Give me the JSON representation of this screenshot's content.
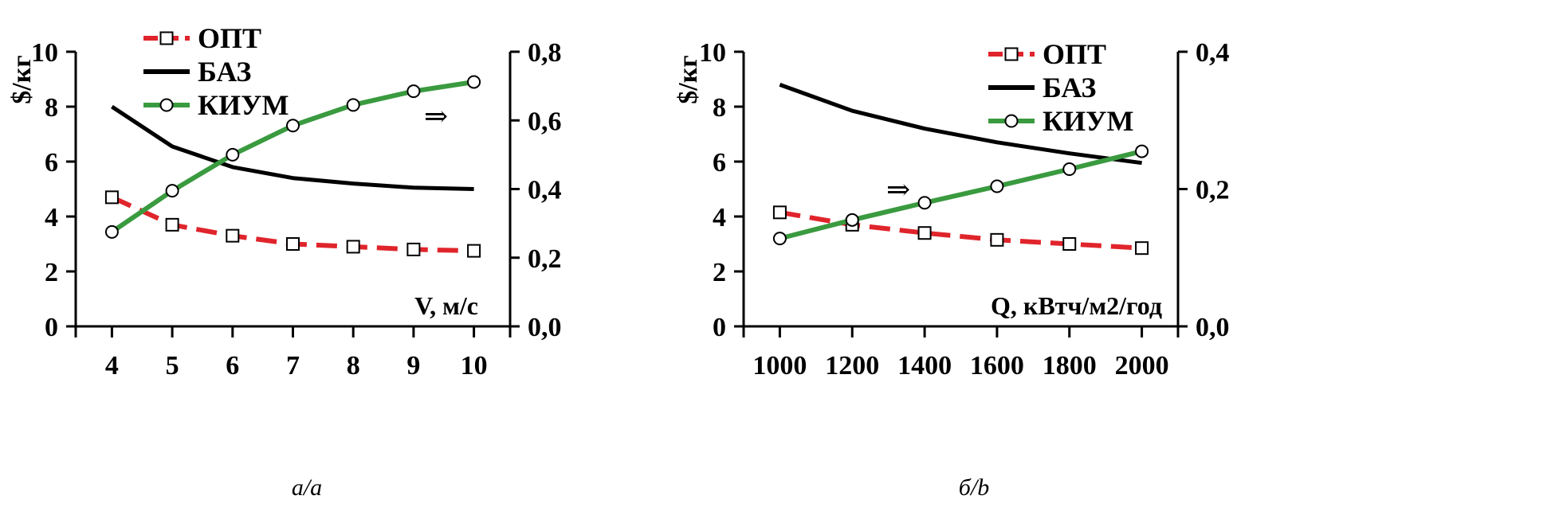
{
  "chart_data": [
    {
      "type": "line",
      "panel_label": "а/a",
      "x_axis": {
        "name": "V, м/с",
        "ticks": [
          "4",
          "5",
          "6",
          "7",
          "8",
          "9",
          "10"
        ],
        "range": [
          3.4,
          10.6
        ]
      },
      "y_left": {
        "label": "$/кг",
        "ticks": [
          "0",
          "2",
          "4",
          "6",
          "8",
          "10"
        ],
        "range": [
          0,
          10
        ]
      },
      "y_right": {
        "ticks": [
          "0,0",
          "0,2",
          "0,4",
          "0,6",
          "0,8"
        ],
        "range": [
          0,
          0.8
        ]
      },
      "x": [
        4,
        5,
        6,
        7,
        8,
        9,
        10
      ],
      "series": [
        {
          "name": "ОПТ",
          "axis": "left",
          "color": "#e0242b",
          "style": "dashed",
          "marker": "square",
          "values": [
            4.7,
            3.7,
            3.3,
            3.0,
            2.9,
            2.8,
            2.75
          ]
        },
        {
          "name": "БАЗ",
          "axis": "left",
          "color": "#000000",
          "style": "solid",
          "marker": "none",
          "values": [
            8.0,
            6.55,
            5.8,
            5.4,
            5.2,
            5.05,
            5.0
          ]
        },
        {
          "name": "КИУМ",
          "axis": "right",
          "color": "#3a9a3f",
          "style": "solid",
          "marker": "circle",
          "values": [
            0.275,
            0.395,
            0.5,
            0.585,
            0.645,
            0.685,
            0.712
          ]
        }
      ],
      "arrow": "⇒",
      "legend_placement": "top-left"
    },
    {
      "type": "line",
      "panel_label": "б/b",
      "x_axis": {
        "name": "Q, кВтч/м2/год",
        "ticks": [
          "1000",
          "1200",
          "1400",
          "1600",
          "1800",
          "2000"
        ],
        "range": [
          900,
          2100
        ]
      },
      "y_left": {
        "label": "$/кг",
        "ticks": [
          "0",
          "2",
          "4",
          "6",
          "8",
          "10"
        ],
        "range": [
          0,
          10
        ]
      },
      "y_right": {
        "ticks": [
          "0,0",
          "0,2",
          "0,4"
        ],
        "range": [
          0,
          0.4
        ]
      },
      "x": [
        1000,
        1200,
        1400,
        1600,
        1800,
        2000
      ],
      "series": [
        {
          "name": "ОПТ",
          "axis": "left",
          "color": "#e0242b",
          "style": "dashed",
          "marker": "square",
          "values": [
            4.15,
            3.7,
            3.4,
            3.15,
            3.0,
            2.85
          ]
        },
        {
          "name": "БАЗ",
          "axis": "left",
          "color": "#000000",
          "style": "solid",
          "marker": "none",
          "values": [
            8.8,
            7.85,
            7.2,
            6.7,
            6.3,
            5.95
          ]
        },
        {
          "name": "КИУМ",
          "axis": "right",
          "color": "#3a9a3f",
          "style": "solid",
          "marker": "circle",
          "values": [
            0.128,
            0.155,
            0.18,
            0.204,
            0.229,
            0.255
          ]
        }
      ],
      "arrow": "⇒",
      "legend_placement": "top-right"
    }
  ]
}
